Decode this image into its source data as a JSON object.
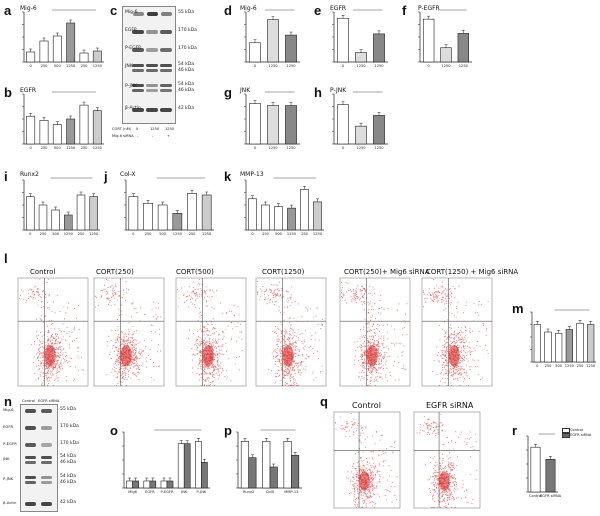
{
  "panels": {
    "a": {
      "letter": "a",
      "title": "Mig-6"
    },
    "b": {
      "letter": "b",
      "title": "EGFR"
    },
    "c": {
      "letter": "c"
    },
    "d": {
      "letter": "d",
      "title": "Mig-6"
    },
    "e": {
      "letter": "e",
      "title": "EGFR"
    },
    "f": {
      "letter": "f",
      "title": "P-EGFR"
    },
    "g": {
      "letter": "g",
      "title": "JNK"
    },
    "h": {
      "letter": "h",
      "title": "P-JNK"
    },
    "i": {
      "letter": "i",
      "title": "Runx2"
    },
    "j": {
      "letter": "j",
      "title": "Col-X"
    },
    "k": {
      "letter": "k",
      "title": "MMP-13"
    },
    "l": {
      "letter": "l"
    },
    "m": {
      "letter": "m"
    },
    "n": {
      "letter": "n"
    },
    "o": {
      "letter": "o"
    },
    "p": {
      "letter": "p"
    },
    "q": {
      "letter": "q"
    },
    "r": {
      "letter": "r"
    }
  },
  "blot_c": {
    "bands": [
      "Mig-6",
      "EGFR",
      "P-EGFR",
      "JNK",
      "P-JNK",
      "β-Actin"
    ],
    "kda": [
      "55 kDa",
      "170 kDa",
      "170 kDa",
      "54 kDa",
      "46 kDa",
      "54 kDa",
      "46 kDa",
      "42 kDa"
    ],
    "cort_label": "CORT (nM)",
    "cort_values": [
      "0",
      "1250",
      "1250"
    ],
    "sirna_label": "Mig-6 siRNA",
    "sirna_values": [
      "-",
      "-",
      "+"
    ]
  },
  "blot_n": {
    "headers": [
      "Control",
      "EGFR siRNA"
    ],
    "bands": [
      "Mig-6",
      "EGFR",
      "P-EGFR",
      "JNK",
      "P-JNK",
      "β-Actin"
    ],
    "kda": [
      "55 kDa",
      "170 kDa",
      "170 kDa",
      "54 kDa",
      "46 kDa",
      "54 kDa",
      "46 kDa",
      "42 kDa"
    ]
  },
  "flow_l": {
    "titles": [
      "Control",
      "CORT(250)",
      "CORT(500)",
      "CORT(1250)",
      "CORT(250)+ Mig6 siRNA",
      "CORT(1250) + Mig6 siRNA"
    ]
  },
  "flow_q": {
    "titles": [
      "Control",
      "EGFR siRNA"
    ]
  },
  "legend_r": [
    "Control",
    "EGFR siRNA"
  ],
  "axis_labels": {
    "mrna": "mRNA levels",
    "relative_protein": "Relative grayscale of protein",
    "apoptosis": "Apoptosis ratio (%)",
    "cort": "CORT (nM)",
    "sirna": "Mig-6 siRNA"
  },
  "chart_data": [
    {
      "panel": "a",
      "type": "bar",
      "categories": [
        "0",
        "250",
        "500",
        "1250",
        "250",
        "1250"
      ],
      "values": [
        1.0,
        2.1,
        2.6,
        3.9,
        0.9,
        1.1
      ],
      "ylim": [
        0,
        5
      ]
    },
    {
      "panel": "b",
      "type": "bar",
      "categories": [
        "0",
        "250",
        "500",
        "1250",
        "250",
        "1250"
      ],
      "values": [
        1.0,
        0.85,
        0.7,
        0.9,
        1.4,
        1.2
      ],
      "ylim": [
        0,
        1.8
      ]
    },
    {
      "panel": "d",
      "type": "bar",
      "categories": [
        "0",
        "1250",
        "1250"
      ],
      "values": [
        0.5,
        1.1,
        0.7
      ],
      "ylim": [
        0,
        1.3
      ]
    },
    {
      "panel": "e",
      "type": "bar",
      "categories": [
        "0",
        "1250",
        "1250"
      ],
      "values": [
        1.4,
        0.3,
        0.9
      ],
      "ylim": [
        0,
        1.6
      ]
    },
    {
      "panel": "f",
      "type": "bar",
      "categories": [
        "0",
        "1250",
        "1250"
      ],
      "values": [
        1.2,
        0.4,
        0.8
      ],
      "ylim": [
        0,
        1.4
      ]
    },
    {
      "panel": "g",
      "type": "bar",
      "categories": [
        "0",
        "1250",
        "1250"
      ],
      "values": [
        1.05,
        1.0,
        1.0
      ],
      "ylim": [
        0,
        1.3
      ]
    },
    {
      "panel": "h",
      "type": "bar",
      "categories": [
        "0",
        "1250",
        "1250"
      ],
      "values": [
        1.1,
        0.5,
        0.8
      ],
      "ylim": [
        0,
        1.4
      ]
    },
    {
      "panel": "i",
      "type": "bar",
      "categories": [
        "0",
        "250",
        "500",
        "1250",
        "250",
        "1250"
      ],
      "values": [
        1.0,
        0.75,
        0.6,
        0.45,
        1.05,
        1.0
      ],
      "ylim": [
        0,
        1.5
      ]
    },
    {
      "panel": "j",
      "type": "bar",
      "categories": [
        "0",
        "250",
        "500",
        "1250",
        "250",
        "1250"
      ],
      "values": [
        1.0,
        0.8,
        0.75,
        0.5,
        1.1,
        1.05
      ],
      "ylim": [
        0,
        1.5
      ]
    },
    {
      "panel": "k",
      "type": "bar",
      "categories": [
        "0",
        "250",
        "500",
        "1250",
        "250",
        "1250"
      ],
      "values": [
        1.0,
        0.8,
        0.75,
        0.7,
        1.3,
        0.9
      ],
      "ylim": [
        0,
        1.6
      ]
    },
    {
      "panel": "m",
      "type": "bar",
      "categories": [
        "0",
        "250",
        "500",
        "1250",
        "250",
        "1250"
      ],
      "values": [
        30,
        24,
        23,
        26,
        31,
        30
      ],
      "ylim": [
        0,
        40
      ]
    },
    {
      "panel": "o",
      "type": "bar",
      "categories": [
        "Mig6",
        "EGFR",
        "P-EGFR",
        "JNK",
        "P-JNK"
      ],
      "series": [
        {
          "values": [
            0.15,
            0.15,
            0.15,
            0.95,
            1.0
          ]
        },
        {
          "values": [
            0.15,
            0.15,
            0.15,
            0.95,
            0.55
          ]
        }
      ],
      "ylim": [
        0,
        1.2
      ]
    },
    {
      "panel": "p",
      "type": "bar",
      "categories": [
        "Runx2",
        "ColX",
        "MMP-13"
      ],
      "series": [
        {
          "values": [
            1.0,
            1.0,
            1.0
          ]
        },
        {
          "values": [
            0.65,
            0.45,
            0.7
          ]
        }
      ],
      "ylim": [
        0,
        1.2
      ]
    },
    {
      "panel": "r",
      "type": "bar",
      "categories": [
        "Control",
        "EGFR siRNA"
      ],
      "values": [
        48,
        35
      ],
      "ylim": [
        0,
        60
      ]
    }
  ]
}
